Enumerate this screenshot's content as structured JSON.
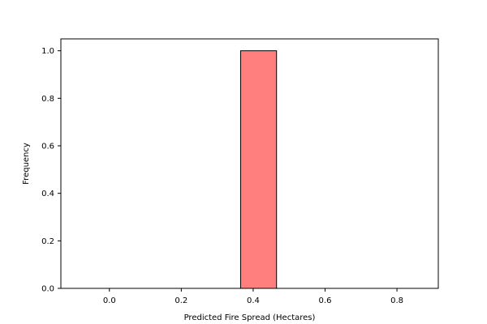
{
  "chart_data": {
    "type": "bar",
    "title": "",
    "xlabel": "Predicted Fire Spread (Hectares)",
    "ylabel": "Frequency",
    "xlim": [
      -0.135,
      0.915
    ],
    "ylim": [
      0,
      1.05
    ],
    "x_ticks": [
      "0.0",
      "0.2",
      "0.4",
      "0.6",
      "0.8"
    ],
    "y_ticks": [
      "0.0",
      "0.2",
      "0.4",
      "0.6",
      "0.8",
      "1.0"
    ],
    "bins": [
      {
        "start": -0.135,
        "end": -0.035,
        "value": 0
      },
      {
        "start": -0.035,
        "end": 0.065,
        "value": 0
      },
      {
        "start": 0.065,
        "end": 0.165,
        "value": 0
      },
      {
        "start": 0.165,
        "end": 0.265,
        "value": 0
      },
      {
        "start": 0.265,
        "end": 0.365,
        "value": 0
      },
      {
        "start": 0.365,
        "end": 0.465,
        "value": 1
      },
      {
        "start": 0.465,
        "end": 0.565,
        "value": 0
      },
      {
        "start": 0.565,
        "end": 0.665,
        "value": 0
      },
      {
        "start": 0.665,
        "end": 0.765,
        "value": 0
      },
      {
        "start": 0.765,
        "end": 0.865,
        "value": 0
      }
    ],
    "bar_color": "#ff7f7f",
    "edge_color": "#000000",
    "grid": false,
    "legend": "none"
  }
}
